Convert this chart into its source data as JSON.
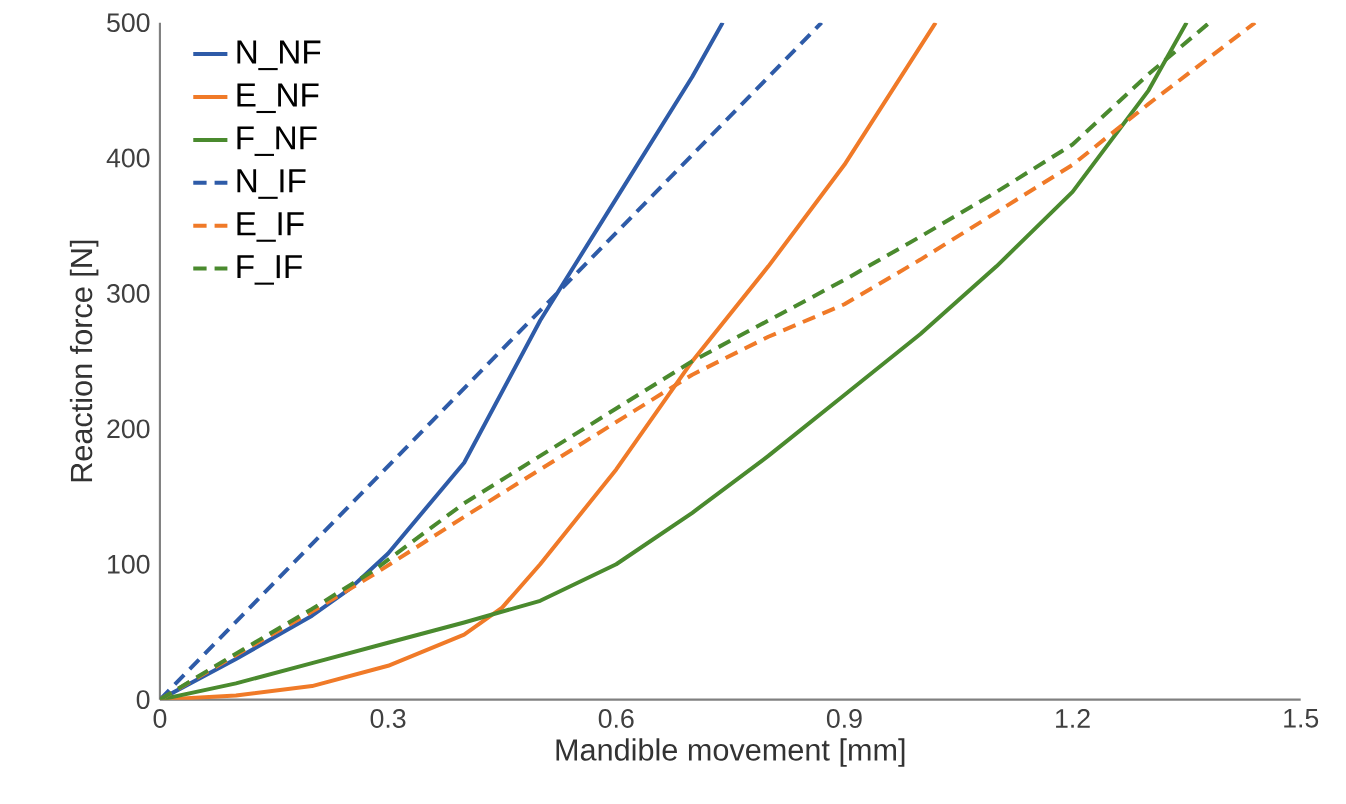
{
  "chart_data": {
    "type": "line",
    "xlabel": "Mandible movement [mm]",
    "ylabel": "Reaction force [N]",
    "xlim": [
      0,
      1.5
    ],
    "ylim": [
      0,
      500
    ],
    "xticks": [
      0,
      0.3,
      0.6,
      0.9,
      1.2,
      1.5
    ],
    "yticks": [
      0,
      100,
      200,
      300,
      400,
      500
    ],
    "grid": false,
    "legend": "top left",
    "marker": "none",
    "series": [
      {
        "name": "N_NF",
        "color": "#2e5ba8",
        "line_style": "solid",
        "x": [
          0,
          0.1,
          0.2,
          0.25,
          0.3,
          0.4,
          0.5,
          0.6,
          0.7,
          0.74
        ],
        "values": [
          0,
          30,
          62,
          82,
          108,
          175,
          280,
          370,
          460,
          500
        ]
      },
      {
        "name": "E_NF",
        "color": "#f07a28",
        "line_style": "solid",
        "x": [
          0,
          0.1,
          0.2,
          0.3,
          0.4,
          0.45,
          0.5,
          0.6,
          0.7,
          0.8,
          0.9,
          1.02
        ],
        "values": [
          0,
          3,
          10,
          25,
          48,
          68,
          100,
          170,
          250,
          320,
          395,
          500
        ]
      },
      {
        "name": "F_NF",
        "color": "#4a8a2e",
        "line_style": "solid",
        "x": [
          0,
          0.1,
          0.2,
          0.3,
          0.4,
          0.5,
          0.6,
          0.7,
          0.8,
          0.9,
          1.0,
          1.1,
          1.2,
          1.3,
          1.35
        ],
        "values": [
          0,
          12,
          27,
          42,
          57,
          73,
          100,
          138,
          180,
          225,
          270,
          320,
          375,
          450,
          500
        ]
      },
      {
        "name": "N_IF",
        "color": "#2e5ba8",
        "line_style": "dashed",
        "x": [
          0,
          0.87
        ],
        "values": [
          0,
          500
        ]
      },
      {
        "name": "E_IF",
        "color": "#f07a28",
        "line_style": "dashed",
        "x": [
          0,
          0.1,
          0.2,
          0.28,
          0.4,
          0.5,
          0.6,
          0.7,
          0.8,
          0.9,
          1.0,
          1.1,
          1.2,
          1.3,
          1.44
        ],
        "values": [
          0,
          33,
          65,
          92,
          135,
          170,
          205,
          240,
          268,
          292,
          325,
          360,
          395,
          440,
          500
        ]
      },
      {
        "name": "F_IF",
        "color": "#4a8a2e",
        "line_style": "dashed",
        "x": [
          0,
          0.1,
          0.2,
          0.28,
          0.4,
          0.5,
          0.6,
          0.7,
          0.8,
          0.9,
          1.0,
          1.1,
          1.2,
          1.3,
          1.38
        ],
        "values": [
          0,
          34,
          67,
          95,
          145,
          180,
          215,
          250,
          280,
          310,
          342,
          375,
          410,
          462,
          500
        ]
      }
    ]
  }
}
